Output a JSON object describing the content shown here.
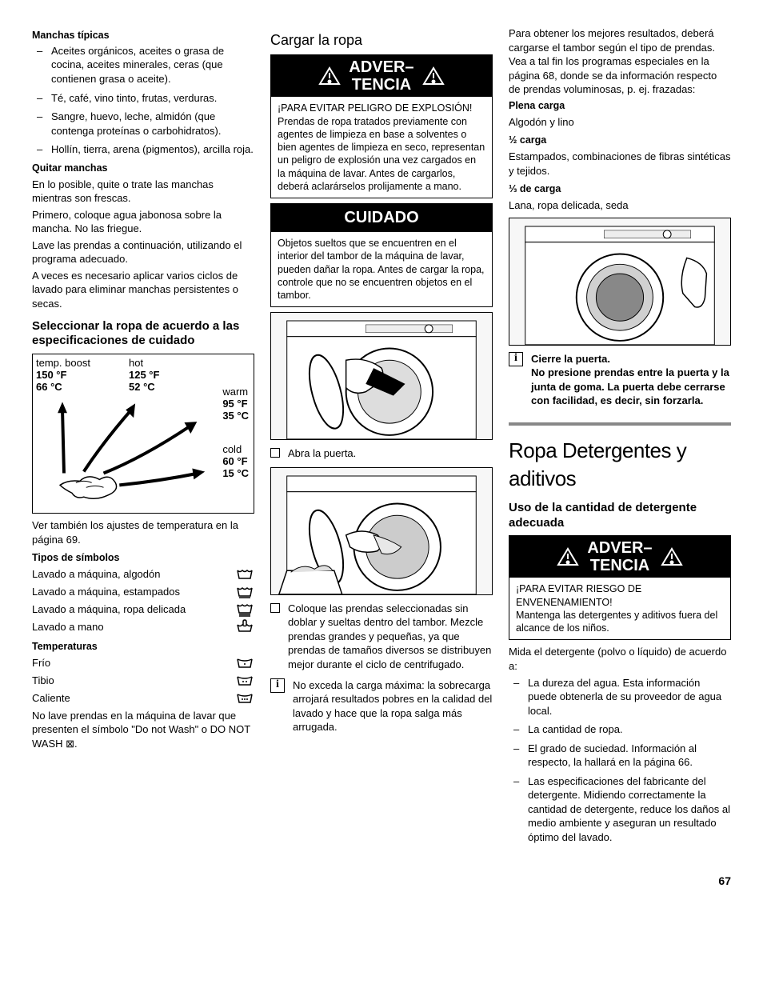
{
  "page_number": "67",
  "col1": {
    "stains_heading": "Manchas típicas",
    "stains": [
      "Aceites orgánicos, aceites o grasa de cocina, aceites minerales, ceras (que contienen grasa o aceite).",
      "Té, café, vino tinto, frutas, verduras.",
      "Sangre, huevo, leche, almidón (que contenga proteínas o carbohidratos).",
      "Hollín, tierra, arena (pigmentos), arcilla roja."
    ],
    "remove_heading": "Quitar manchas",
    "remove_p1": "En lo posible, quite o trate las manchas mientras son frescas.",
    "remove_p2": "Primero, coloque agua jabonosa sobre la mancha. No las friegue.",
    "remove_p3": "Lave las prendas a continuación, utilizando el programa adecuado.",
    "remove_p4": "A veces es necesario aplicar varios ciclos de lavado para eliminar manchas persistentes o secas.",
    "select_heading": "Seleccionar la ropa de acuerdo a las especificaciones de cuidado",
    "temp_diagram": {
      "boost_label": "temp. boost",
      "boost_f": "150 °F",
      "boost_c": "66 °C",
      "hot_label": "hot",
      "hot_f": "125 °F",
      "hot_c": "52 °C",
      "warm_label": "warm",
      "warm_f": "95 °F",
      "warm_c": "35 °C",
      "cold_label": "cold",
      "cold_f": "60 °F",
      "cold_c": "15 °C"
    },
    "see_also": "Ver también los ajustes de temperatura en la página 69.",
    "symbols_heading": "Tipos de símbolos",
    "sym1": "Lavado a máquina, algodón",
    "sym2": "Lavado a máquina, estampados",
    "sym3": "Lavado a máquina, ropa delicada",
    "sym4": "Lavado a mano",
    "temps_heading": "Temperaturas",
    "t1": "Frío",
    "t2": "Tibio",
    "t3": "Caliente",
    "do_not_wash": "No lave prendas en la máquina de lavar que presenten el símbolo \"Do not Wash\" o DO NOT WASH ⊠."
  },
  "col2": {
    "heading": "Cargar la ropa",
    "warn_title": "ADVER–TENCIA",
    "warn_lead": "¡PARA EVITAR PELIGRO DE EXPLOSIÓN!",
    "warn_body": "Prendas de ropa tratados previamente con agentes de limpieza en base a solventes o bien agentes de limpieza en seco, representan un peligro de explosión una vez cargados en la máquina de lavar. Antes de cargarlos, deberá aclarárselos prolijamente a mano.",
    "caution_title": "CUIDADO",
    "caution_body": "Objetos sueltos que se encuentren en el interior del tambor de la máquina de lavar, pueden dañar la ropa. Antes de cargar la ropa, controle que no se encuentren objetos en el tambor.",
    "step1": "Abra la puerta.",
    "step2": "Coloque las prendas seleccionadas sin doblar y sueltas dentro del tambor. Mezcle prendas grandes y pequeñas, ya que prendas de tamaños diversos se distribuyen mejor durante el ciclo de centrifugado.",
    "info1": "No exceda la carga máxima: la sobrecarga arrojará resultados pobres en la calidad del lavado y hace que la ropa salga más arrugada."
  },
  "col3": {
    "intro": "Para obtener los mejores resultados, deberá cargarse el tambor según el tipo de prendas. Vea a tal fin los programas especiales en la página 68, donde se da información respecto de prendas voluminosas, p. ej. frazadas:",
    "full_load_h": "Plena carga",
    "full_load": "Algodón y lino",
    "half_load_h": "½ carga",
    "half_load": "Estampados, combinaciones de fibras sintéticas y tejidos.",
    "third_load_h": "⅓ de carga",
    "third_load": "Lana, ropa delicada, seda",
    "close_door_h": "Cierre la puerta.",
    "close_door_body": "No presione prendas entre la puerta y la junta de goma. La puerta debe cerrarse con facilidad, es decir, sin forzarla.",
    "section_title": "Ropa Detergentes y aditivos",
    "sub_heading": "Uso de la cantidad de detergente adecuada",
    "warn_title": "ADVER–TENCIA",
    "warn_lead": "¡PARA EVITAR RIESGO DE ENVENENAMIENTO!",
    "warn_body": "Mantenga las detergentes y aditivos fuera del alcance de los niños.",
    "measure": "Mida el detergente (polvo o líquido) de acuerdo a:",
    "items": [
      "La dureza del agua. Esta información puede obtenerla de su proveedor de agua local.",
      "La cantidad de ropa.",
      "El grado de suciedad. Información al respecto, la hallará en la página 66.",
      "Las especificaciones del fabricante del detergente. Midiendo correctamente la cantidad de detergente, reduce los daños al medio ambiente y aseguran un resultado óptimo del lavado."
    ]
  }
}
